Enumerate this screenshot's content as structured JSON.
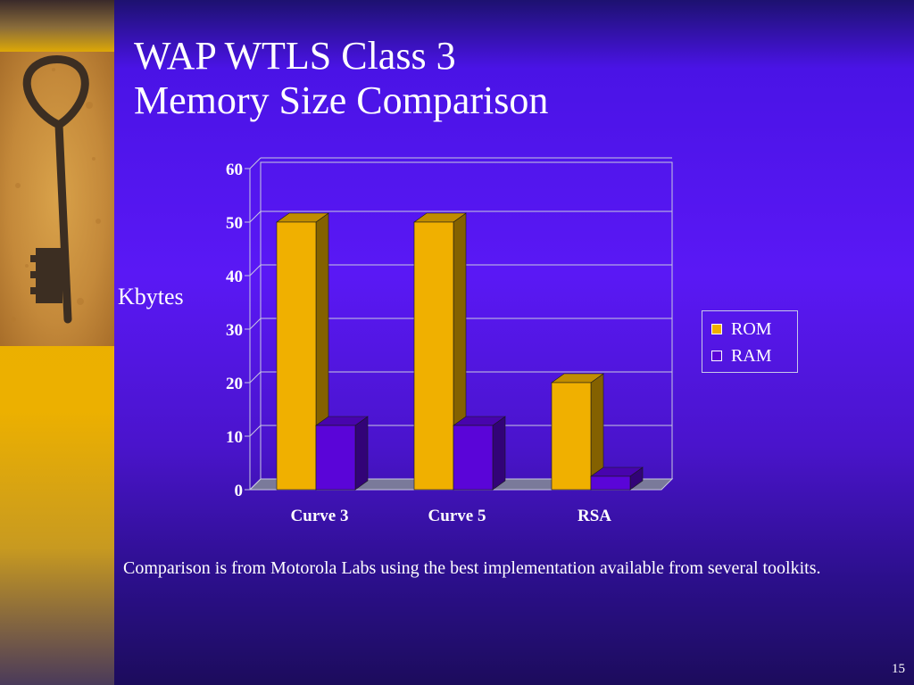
{
  "slide": {
    "title_line1": "WAP WTLS Class 3",
    "title_line2": "Memory Size Comparison",
    "caption": "Comparison is from Motorola Labs using the best implementation available from several toolkits.",
    "page_number": "15"
  },
  "colors": {
    "rom": "#f0b000",
    "ram": "#5a05d8",
    "background": "#4a14e0",
    "accent_band": "#ecb000"
  },
  "chart_data": {
    "type": "bar",
    "categories": [
      "Curve 3",
      "Curve 5",
      "RSA"
    ],
    "series": [
      {
        "name": "ROM",
        "values": [
          50,
          50,
          20
        ]
      },
      {
        "name": "RAM",
        "values": [
          12,
          12,
          2.5
        ]
      }
    ],
    "ylabel": "Kbytes",
    "ylim": [
      0,
      60
    ],
    "yticks": [
      0,
      10,
      20,
      30,
      40,
      50,
      60
    ],
    "grid": true,
    "legend_position": "right",
    "style": "3d"
  }
}
